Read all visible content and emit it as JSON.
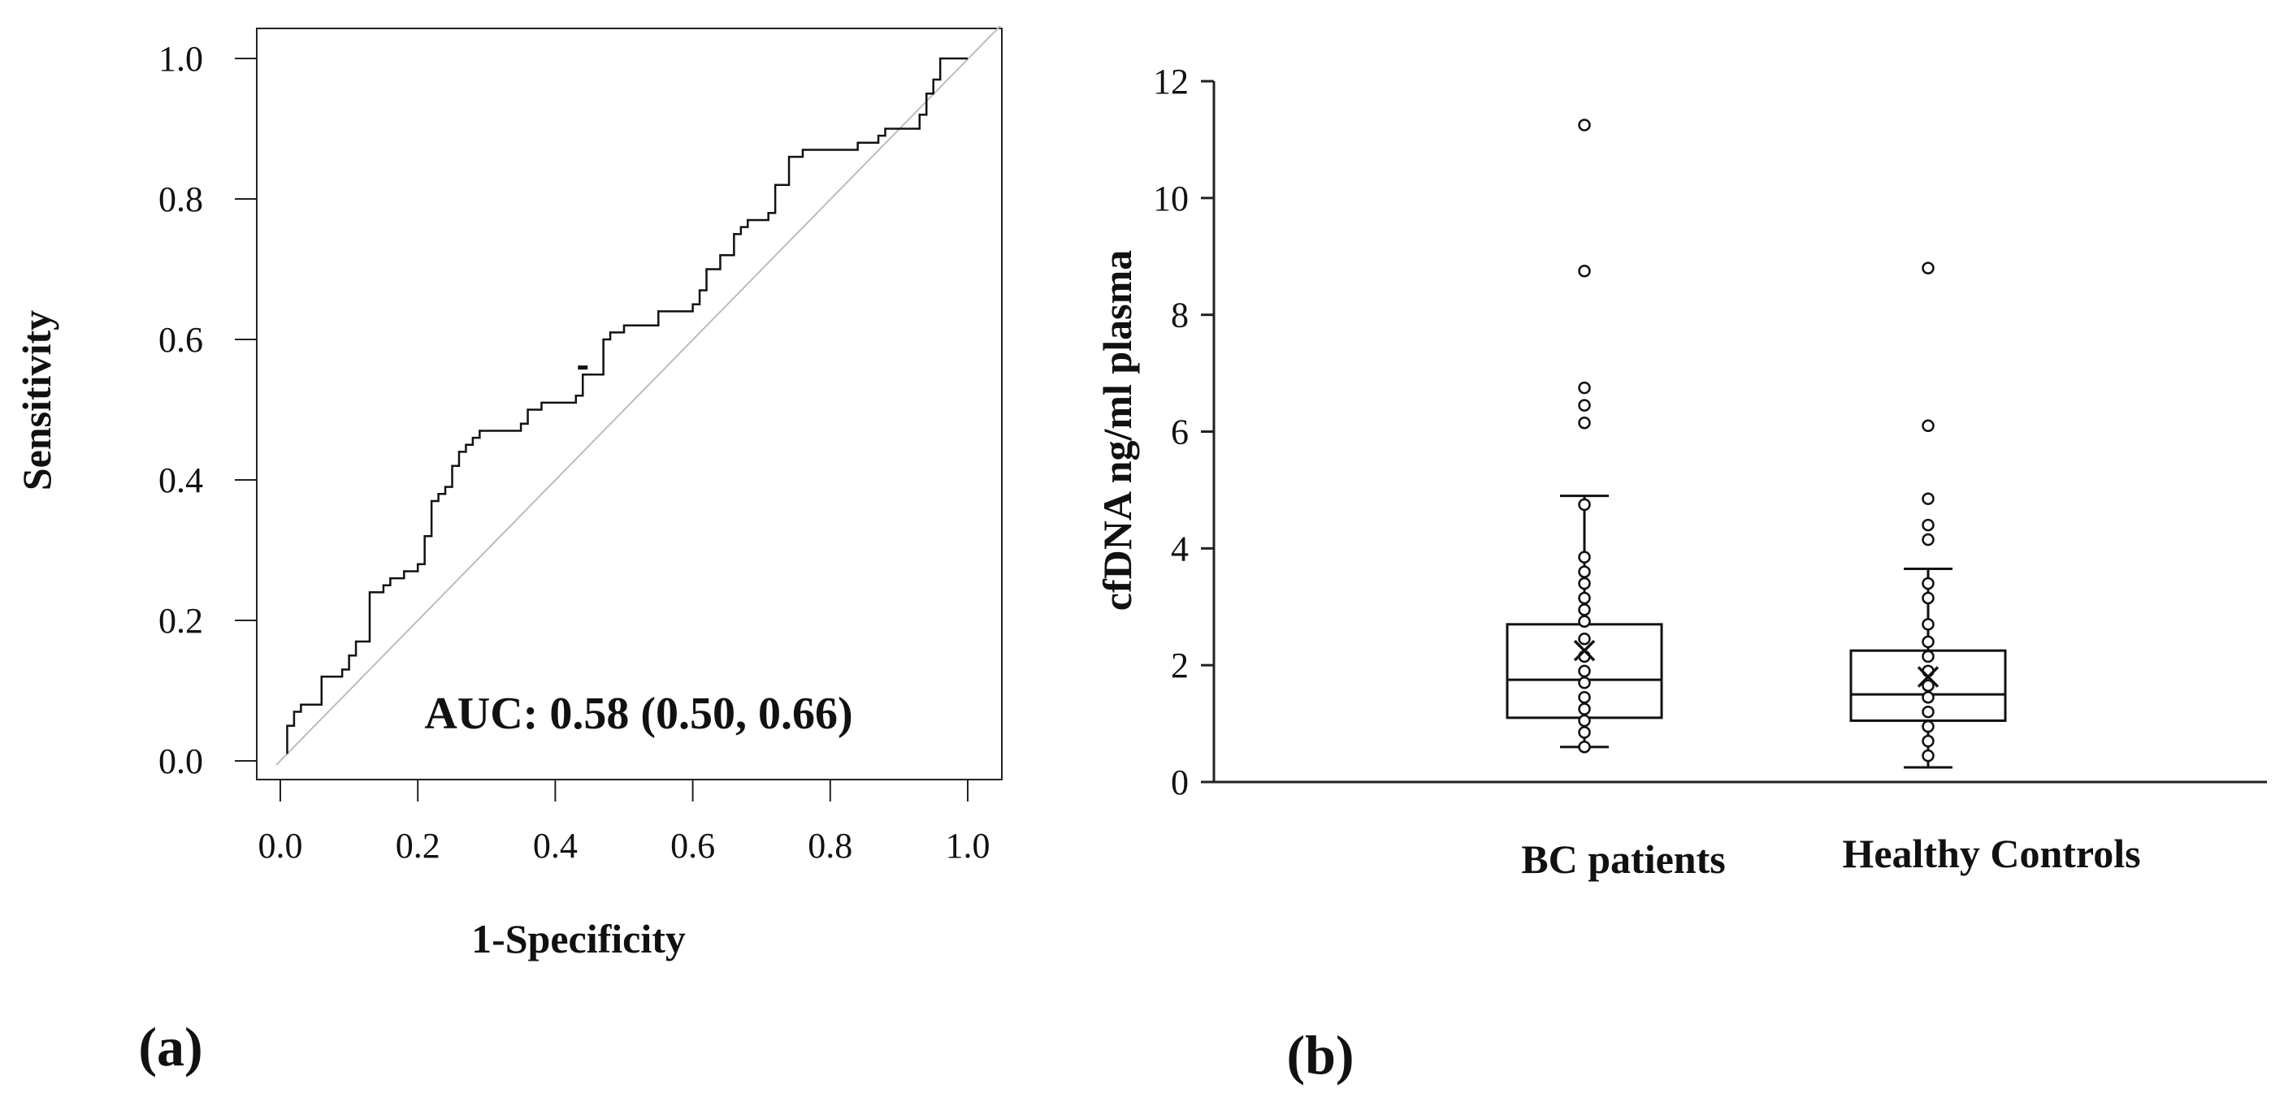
{
  "chart_data": [
    {
      "type": "line",
      "panel_label": "(a)",
      "subtype": "roc",
      "xlabel": "1-Specificity",
      "ylabel": "Sensitivity",
      "xlim": [
        0,
        1
      ],
      "ylim": [
        0,
        1
      ],
      "x_ticks": [
        "0.0",
        "0.2",
        "0.4",
        "0.6",
        "0.8",
        "1.0"
      ],
      "y_ticks": [
        "0.0",
        "0.2",
        "0.4",
        "0.6",
        "0.8",
        "1.0"
      ],
      "annotation": "AUC: 0.58 (0.50, 0.66)",
      "reference_line": {
        "x": [
          0,
          1
        ],
        "y": [
          0,
          1
        ]
      },
      "series": [
        {
          "name": "ROC",
          "x": [
            0.01,
            0.01,
            0.02,
            0.02,
            0.03,
            0.04,
            0.06,
            0.06,
            0.09,
            0.1,
            0.11,
            0.12,
            0.13,
            0.13,
            0.15,
            0.16,
            0.18,
            0.2,
            0.21,
            0.22,
            0.23,
            0.24,
            0.25,
            0.26,
            0.27,
            0.28,
            0.29,
            0.3,
            0.31,
            0.35,
            0.36,
            0.37,
            0.38,
            0.41,
            0.43,
            0.44,
            0.44,
            0.46,
            0.47,
            0.48,
            0.5,
            0.52,
            0.55,
            0.58,
            0.6,
            0.61,
            0.62,
            0.64,
            0.66,
            0.67,
            0.68,
            0.71,
            0.71,
            0.72,
            0.72,
            0.74,
            0.76,
            0.84,
            0.85,
            0.87,
            0.88,
            0.92,
            0.93,
            0.94,
            0.94,
            0.95,
            0.96,
            1.0
          ],
          "y": [
            0.01,
            0.05,
            0.06,
            0.07,
            0.08,
            0.08,
            0.11,
            0.12,
            0.13,
            0.15,
            0.17,
            0.17,
            0.22,
            0.24,
            0.25,
            0.26,
            0.27,
            0.28,
            0.32,
            0.37,
            0.38,
            0.39,
            0.42,
            0.44,
            0.45,
            0.46,
            0.47,
            0.47,
            0.47,
            0.48,
            0.5,
            0.5,
            0.51,
            0.51,
            0.52,
            0.53,
            0.55,
            0.55,
            0.6,
            0.61,
            0.62,
            0.62,
            0.64,
            0.64,
            0.65,
            0.67,
            0.7,
            0.72,
            0.75,
            0.76,
            0.77,
            0.77,
            0.78,
            0.8,
            0.82,
            0.86,
            0.87,
            0.88,
            0.88,
            0.89,
            0.9,
            0.9,
            0.92,
            0.93,
            0.95,
            0.97,
            1.0,
            1.0
          ]
        }
      ],
      "marker_point": {
        "x": 0.44,
        "y": 0.56
      }
    },
    {
      "type": "box",
      "panel_label": "(b)",
      "ylabel": "cfDNA ng/ml plasma",
      "xlabel": "",
      "ylim": [
        0,
        12
      ],
      "y_ticks": [
        "0",
        "2",
        "4",
        "6",
        "8",
        "10",
        "12"
      ],
      "categories": [
        "BC patients",
        "Healthy Controls"
      ],
      "series": [
        {
          "name": "BC patients",
          "whisker_low": 0.6,
          "q1": 1.1,
          "median": 1.75,
          "q3": 2.7,
          "whisker_high": 4.9,
          "mean": 2.25,
          "points": [
            0.6,
            0.85,
            1.05,
            1.25,
            1.45,
            1.7,
            1.9,
            2.15,
            2.45,
            2.75,
            2.95,
            3.15,
            3.4,
            3.6,
            3.85,
            4.75
          ],
          "outliers": [
            6.15,
            6.45,
            6.75,
            8.75,
            11.25
          ]
        },
        {
          "name": "Healthy Controls",
          "whisker_low": 0.25,
          "q1": 1.05,
          "median": 1.5,
          "q3": 2.25,
          "whisker_high": 3.65,
          "mean": 1.8,
          "points": [
            0.45,
            0.7,
            0.95,
            1.2,
            1.45,
            1.65,
            1.9,
            2.15,
            2.4,
            2.7,
            3.15,
            3.4
          ],
          "outliers": [
            4.15,
            4.4,
            4.85,
            6.1,
            8.8
          ]
        }
      ]
    }
  ]
}
